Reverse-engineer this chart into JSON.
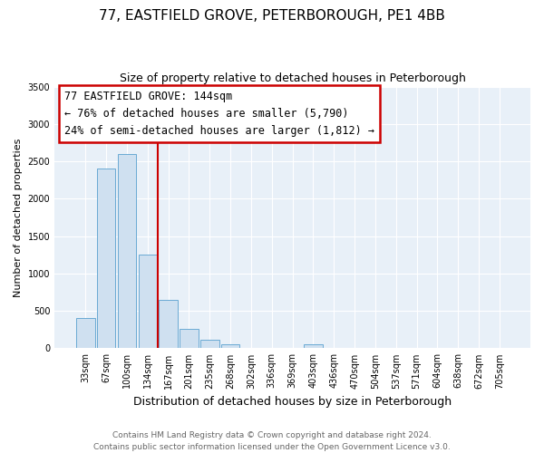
{
  "title": "77, EASTFIELD GROVE, PETERBOROUGH, PE1 4BB",
  "subtitle": "Size of property relative to detached houses in Peterborough",
  "xlabel": "Distribution of detached houses by size in Peterborough",
  "ylabel": "Number of detached properties",
  "bar_labels": [
    "33sqm",
    "67sqm",
    "100sqm",
    "134sqm",
    "167sqm",
    "201sqm",
    "235sqm",
    "268sqm",
    "302sqm",
    "336sqm",
    "369sqm",
    "403sqm",
    "436sqm",
    "470sqm",
    "504sqm",
    "537sqm",
    "571sqm",
    "604sqm",
    "638sqm",
    "672sqm",
    "705sqm"
  ],
  "bar_values": [
    400,
    2400,
    2600,
    1250,
    650,
    260,
    110,
    55,
    0,
    0,
    0,
    55,
    0,
    0,
    0,
    0,
    0,
    0,
    0,
    0,
    0
  ],
  "bar_color": "#cfe0f0",
  "bar_edgecolor": "#6aaad4",
  "ylim": [
    0,
    3500
  ],
  "yticks": [
    0,
    500,
    1000,
    1500,
    2000,
    2500,
    3000,
    3500
  ],
  "vline_index": 3,
  "vline_color": "#cc0000",
  "annotation_title": "77 EASTFIELD GROVE: 144sqm",
  "annotation_line1": "← 76% of detached houses are smaller (5,790)",
  "annotation_line2": "24% of semi-detached houses are larger (1,812) →",
  "annotation_box_edgecolor": "#cc0000",
  "footer_line1": "Contains HM Land Registry data © Crown copyright and database right 2024.",
  "footer_line2": "Contains public sector information licensed under the Open Government Licence v3.0.",
  "plot_bg_color": "#e8f0f8",
  "title_fontsize": 11,
  "subtitle_fontsize": 9,
  "xlabel_fontsize": 9,
  "ylabel_fontsize": 8,
  "tick_fontsize": 7,
  "footer_fontsize": 6.5,
  "annotation_fontsize": 8.5
}
